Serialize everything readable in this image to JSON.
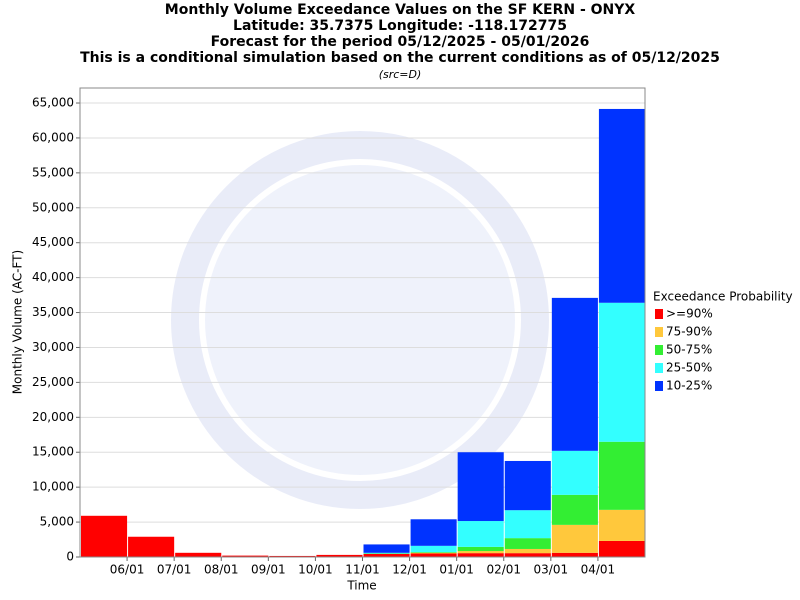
{
  "chart_data": {
    "type": "stacked_bar",
    "title": "Monthly Volume Exceedance Values on the SF KERN - ONYX",
    "subtitle": [
      "Latitude: 35.7375 Longitude: -118.172775",
      "Forecast for the period 05/12/2025 - 05/01/2026",
      "This is a conditional simulation based on the current conditions as of 05/12/2025"
    ],
    "source": "(src=D)",
    "y_label": "Monthly Volume (AC-FT)",
    "x_label": "Time",
    "legend_title": "Exceedance Probability",
    "categories": [
      null,
      null,
      null,
      null,
      null,
      null,
      null,
      null,
      null,
      null,
      null,
      null
    ],
    "x_labels": [
      "06/01",
      "07/01",
      "08/01",
      "09/01",
      "10/01",
      "11/01",
      "12/01",
      "01/01",
      "02/01",
      "03/01",
      "04/01"
    ],
    "series": [
      {
        "name": ">=90%",
        "color": "#ff0000",
        "values": [
          5900,
          2900,
          600,
          200,
          150,
          300,
          450,
          500,
          550,
          550,
          600,
          2300
        ]
      },
      {
        "name": "75-90%",
        "color": "#ffc83c",
        "values": [
          0,
          0,
          0,
          0,
          0,
          0,
          0,
          100,
          300,
          600,
          4000,
          4450
        ]
      },
      {
        "name": "50-75%",
        "color": "#33ee33",
        "values": [
          0,
          0,
          0,
          0,
          0,
          0,
          50,
          100,
          600,
          1550,
          4300,
          9750
        ]
      },
      {
        "name": "25-50%",
        "color": "#33ffff",
        "values": [
          0,
          0,
          0,
          0,
          0,
          0,
          100,
          900,
          3700,
          4000,
          6300,
          19900
        ]
      },
      {
        "name": "10-25%",
        "color": "#0033ff",
        "values": [
          0,
          0,
          0,
          0,
          0,
          0,
          1200,
          3800,
          9850,
          7050,
          21900,
          27750
        ]
      }
    ],
    "ylim": [
      0,
      67150
    ],
    "yticks": [
      0,
      {
        "value": 5000,
        "label": "5,000"
      },
      {
        "value": 10000,
        "label": "10,000"
      },
      {
        "value": 15000,
        "label": "15,000"
      },
      {
        "value": 20000,
        "label": "20,000"
      },
      {
        "value": 25000,
        "label": "25,000"
      },
      {
        "value": 30000,
        "label": "30,000"
      },
      {
        "value": 35000,
        "label": "35,000"
      },
      {
        "value": 40000,
        "label": "40,000"
      },
      {
        "value": 45000,
        "label": "45,000"
      },
      {
        "value": 50000,
        "label": "50,000"
      },
      {
        "value": 55000,
        "label": "55,000"
      },
      {
        "value": 60000,
        "label": "60,000"
      },
      {
        "value": 65000,
        "label": "65,000"
      }
    ],
    "grid": true,
    "legend": "right"
  }
}
